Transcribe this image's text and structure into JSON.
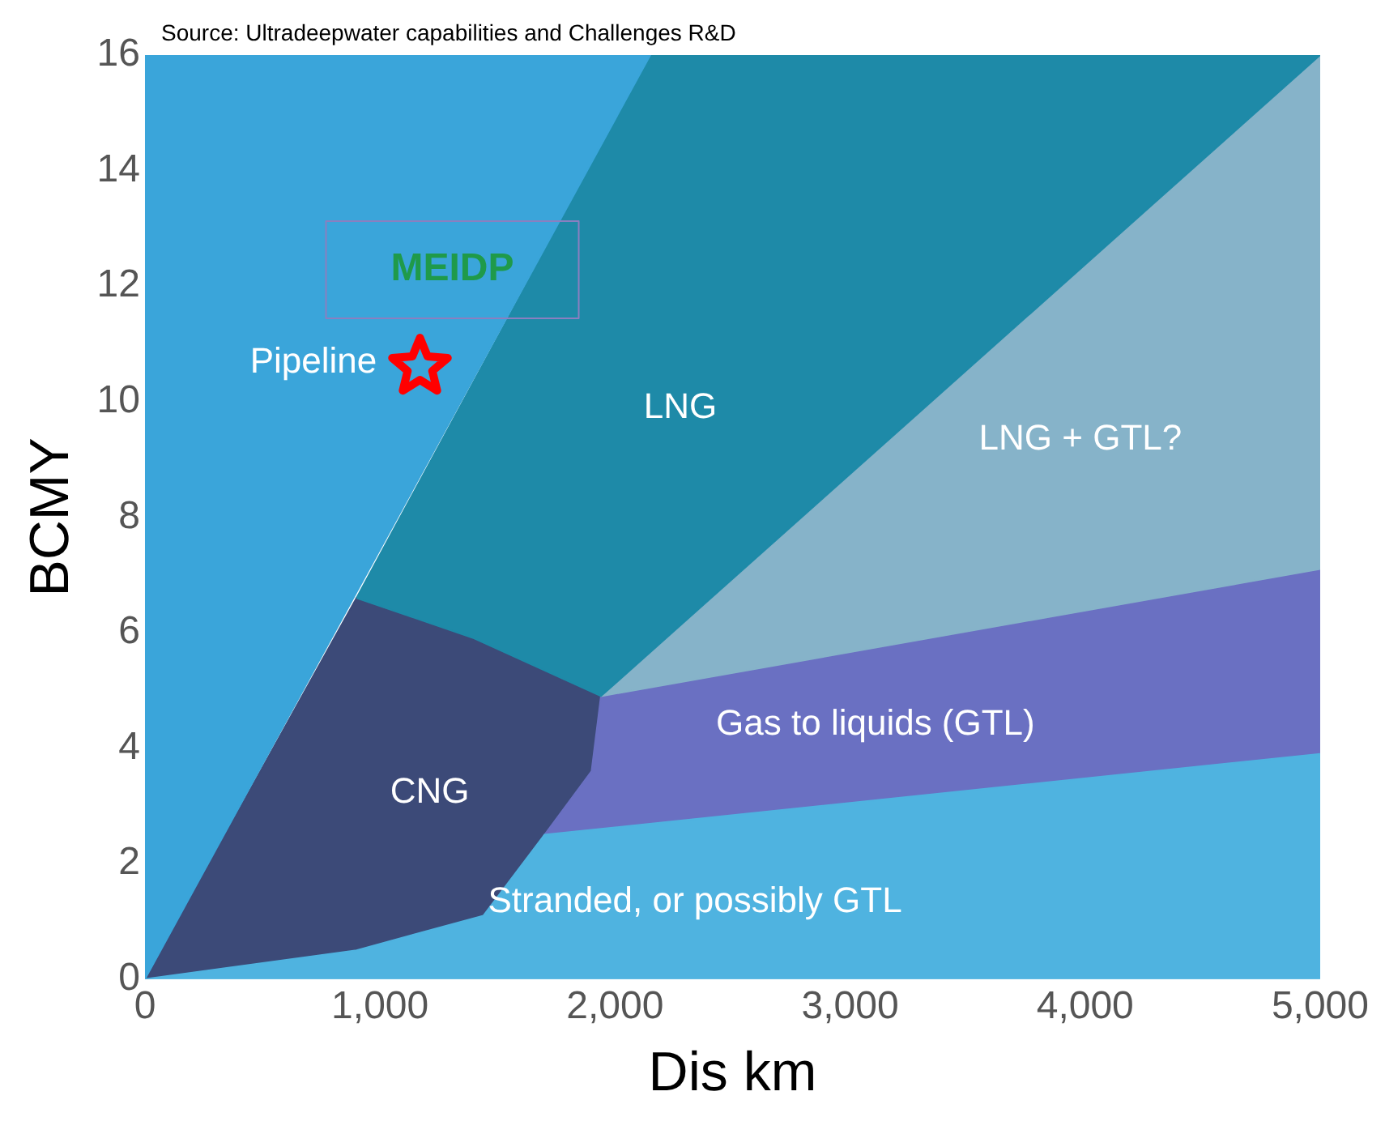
{
  "chart_data": {
    "type": "area",
    "xlabel": "Dis km",
    "ylabel": "BCMY",
    "annotations": [
      "Source: Ultradeepwater capabilities and Challenges R&D",
      {
        "text": "MEIDP",
        "x": 1170,
        "y": 10.6
      }
    ],
    "xlim": [
      0,
      5000
    ],
    "ylim": [
      0,
      16
    ],
    "xticks": [
      0,
      {
        "value": 1000,
        "label": "1,000"
      },
      {
        "value": 2000,
        "label": "2,000"
      },
      {
        "value": 3000,
        "label": "3,000"
      },
      {
        "value": 4000,
        "label": "4,000"
      },
      {
        "value": 5000,
        "label": "5,000"
      }
    ],
    "yticks": [
      0,
      2,
      4,
      6,
      8,
      10,
      12,
      14,
      16
    ],
    "grid": false,
    "legend": false,
    "series": [
      {
        "name": "Stranded, or possibly GTL",
        "color": "#4fb3e0",
        "x": [
          0,
          900,
          1440,
          1700,
          5000,
          5000,
          0
        ],
        "values": [
          0,
          0.5,
          1.1,
          2.5,
          3.9,
          0,
          0
        ]
      },
      {
        "name": "Pipeline",
        "color": "#3aa5da",
        "x": [
          0,
          2150,
          0,
          0
        ],
        "values": [
          0,
          16,
          16,
          0
        ]
      },
      {
        "name": "LNG",
        "color": "#1e8aa8",
        "x": [
          900,
          2150,
          5000,
          1940,
          1400,
          900
        ],
        "values": [
          6.6,
          16,
          16,
          4.9,
          5.9,
          6.6
        ]
      },
      {
        "name": "LNG + GTL?",
        "color": "#86b3c9",
        "x": [
          1940,
          5000,
          5000,
          1940
        ],
        "values": [
          4.9,
          16,
          7.1,
          4.9
        ]
      },
      {
        "name": "Gas to liquids (GTL)",
        "color": "#6a70c2",
        "x": [
          1940,
          5000,
          5000,
          1700,
          1900,
          1940
        ],
        "values": [
          4.9,
          7.1,
          3.9,
          2.5,
          3.6,
          4.9
        ]
      },
      {
        "name": "CNG",
        "color": "#3c4a78",
        "x": [
          0,
          900,
          1400,
          1940,
          1900,
          1440,
          900,
          0
        ],
        "values": [
          0,
          6.6,
          5.9,
          4.9,
          3.6,
          1.1,
          0.5,
          0
        ]
      },
      {
        "type": "scatter",
        "marker": "star",
        "color": "#ff0000",
        "x": [
          1170
        ],
        "values": [
          10.6
        ]
      }
    ]
  }
}
